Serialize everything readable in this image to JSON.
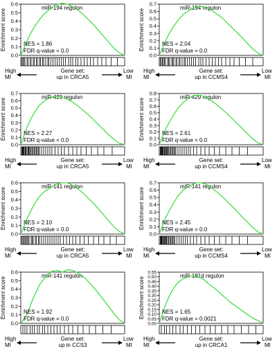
{
  "chart_data": [
    {
      "type": "line",
      "title": "miR-194 regulon",
      "ylabel": "Enrichment score",
      "ylim": [
        0,
        0.6
      ],
      "yticks": [
        "0.0",
        "0.1",
        "0.2",
        "0.3",
        "0.4",
        "0.5",
        "0.6"
      ],
      "nes": "NES = 1.86",
      "fdr": "FDR q-value = 0.0",
      "gene_set": [
        "Gene set:",
        "up in CRCA5"
      ],
      "left_label": [
        "High",
        "MI"
      ],
      "right_label": [
        "Low",
        "MI"
      ],
      "line_color": "#44dd44",
      "grid": false,
      "series": [
        {
          "x": [
            0,
            0.03,
            0.06,
            0.1,
            0.14,
            0.18,
            0.23,
            0.28,
            0.32,
            0.36,
            0.4,
            0.45,
            0.5,
            0.55,
            0.6,
            0.65,
            0.7,
            0.75,
            0.8,
            0.85,
            0.9,
            0.95,
            1.0
          ],
          "y": [
            0.0,
            0.08,
            0.17,
            0.27,
            0.35,
            0.42,
            0.49,
            0.54,
            0.58,
            0.6,
            0.61,
            0.6,
            0.57,
            0.53,
            0.48,
            0.42,
            0.36,
            0.29,
            0.22,
            0.15,
            0.08,
            0.03,
            0.0
          ]
        }
      ],
      "hits": [
        0.01,
        0.02,
        0.03,
        0.04,
        0.06,
        0.07,
        0.09,
        0.1,
        0.12,
        0.13,
        0.15,
        0.16,
        0.18,
        0.19,
        0.21,
        0.22,
        0.24,
        0.26,
        0.27,
        0.29,
        0.31,
        0.33,
        0.35,
        0.37,
        0.39,
        0.41,
        0.43,
        0.46,
        0.48,
        0.5,
        0.53,
        0.55,
        0.58,
        0.61,
        0.64,
        0.67,
        0.7,
        0.74,
        0.78,
        0.82,
        0.87,
        0.93
      ]
    },
    {
      "type": "line",
      "title": "miR-194 regulon",
      "ylabel": "Enrichment score",
      "ylim": [
        0,
        0.7
      ],
      "yticks": [
        "0.0",
        "0.1",
        "0.2",
        "0.3",
        "0.4",
        "0.5",
        "0.6",
        "0.7"
      ],
      "nes": "NES = 2.04",
      "fdr": "FDR q-value = 0.0",
      "gene_set": [
        "Gene set:",
        "up in CCMS4"
      ],
      "left_label": [
        "High",
        "MI"
      ],
      "right_label": [
        "Low",
        "MI"
      ],
      "line_color": "#44dd44",
      "grid": false,
      "series": [
        {
          "x": [
            0,
            0.03,
            0.06,
            0.1,
            0.14,
            0.18,
            0.23,
            0.28,
            0.32,
            0.36,
            0.4,
            0.45,
            0.5,
            0.55,
            0.6,
            0.65,
            0.7,
            0.75,
            0.8,
            0.85,
            0.9,
            0.95,
            1.0
          ],
          "y": [
            0.0,
            0.1,
            0.2,
            0.31,
            0.4,
            0.48,
            0.56,
            0.61,
            0.64,
            0.66,
            0.67,
            0.66,
            0.62,
            0.57,
            0.52,
            0.45,
            0.38,
            0.31,
            0.24,
            0.16,
            0.09,
            0.03,
            0.0
          ]
        }
      ],
      "hits": [
        0.01,
        0.02,
        0.03,
        0.04,
        0.05,
        0.06,
        0.08,
        0.09,
        0.1,
        0.12,
        0.13,
        0.14,
        0.16,
        0.17,
        0.19,
        0.2,
        0.22,
        0.24,
        0.25,
        0.27,
        0.29,
        0.31,
        0.33,
        0.35,
        0.38,
        0.4,
        0.42,
        0.45,
        0.48,
        0.51,
        0.54,
        0.57,
        0.6,
        0.64,
        0.68,
        0.72,
        0.77,
        0.83,
        0.9
      ]
    },
    {
      "type": "line",
      "title": "miR-429 regulon",
      "ylabel": "Enrichment score",
      "ylim": [
        0,
        0.7
      ],
      "yticks": [
        "0.0",
        "0.1",
        "0.2",
        "0.3",
        "0.4",
        "0.5",
        "0.6",
        "0.7"
      ],
      "nes": "NES = 2.27",
      "fdr": "FDR q-value = 0.0",
      "gene_set": [
        "Gene set:",
        "up in CRCA5"
      ],
      "left_label": [
        "High",
        "MI"
      ],
      "right_label": [
        "Low",
        "MI"
      ],
      "line_color": "#44dd44",
      "grid": false,
      "series": [
        {
          "x": [
            0,
            0.03,
            0.06,
            0.1,
            0.14,
            0.18,
            0.23,
            0.28,
            0.32,
            0.36,
            0.4,
            0.45,
            0.5,
            0.55,
            0.6,
            0.65,
            0.7,
            0.75,
            0.8,
            0.85,
            0.9,
            0.95,
            1.0
          ],
          "y": [
            0.0,
            0.12,
            0.24,
            0.36,
            0.46,
            0.54,
            0.6,
            0.64,
            0.66,
            0.66,
            0.65,
            0.62,
            0.58,
            0.53,
            0.47,
            0.41,
            0.34,
            0.27,
            0.2,
            0.13,
            0.07,
            0.02,
            0.0
          ]
        }
      ],
      "hits": [
        0.01,
        0.015,
        0.02,
        0.025,
        0.03,
        0.04,
        0.045,
        0.05,
        0.06,
        0.07,
        0.075,
        0.08,
        0.09,
        0.1,
        0.11,
        0.12,
        0.13,
        0.14,
        0.15,
        0.16,
        0.17,
        0.18,
        0.2,
        0.22,
        0.24,
        0.26,
        0.28,
        0.3,
        0.33,
        0.36,
        0.39,
        0.42,
        0.46,
        0.5,
        0.54,
        0.58,
        0.63,
        0.68,
        0.74,
        0.8,
        0.88
      ]
    },
    {
      "type": "line",
      "title": "miR-429 regulon",
      "ylabel": "Enrichment score",
      "ylim": [
        0,
        0.8
      ],
      "yticks": [
        "0.0",
        "0.1",
        "0.2",
        "0.3",
        "0.4",
        "0.5",
        "0.6",
        "0.7",
        "0.8"
      ],
      "nes": "NES = 2.61",
      "fdr": "FDR q-value = 0.0",
      "gene_set": [
        "Gene set:",
        "up in CCMS4"
      ],
      "left_label": [
        "High",
        "MI"
      ],
      "right_label": [
        "Low",
        "MI"
      ],
      "line_color": "#44dd44",
      "grid": false,
      "series": [
        {
          "x": [
            0,
            0.03,
            0.06,
            0.1,
            0.14,
            0.18,
            0.23,
            0.28,
            0.32,
            0.36,
            0.4,
            0.45,
            0.5,
            0.55,
            0.6,
            0.65,
            0.7,
            0.75,
            0.8,
            0.85,
            0.9,
            0.95,
            1.0
          ],
          "y": [
            0.0,
            0.12,
            0.24,
            0.36,
            0.47,
            0.57,
            0.66,
            0.72,
            0.76,
            0.77,
            0.77,
            0.74,
            0.69,
            0.63,
            0.56,
            0.49,
            0.41,
            0.33,
            0.25,
            0.17,
            0.09,
            0.03,
            0.0
          ]
        }
      ],
      "hits": [
        0.01,
        0.015,
        0.02,
        0.025,
        0.03,
        0.035,
        0.04,
        0.05,
        0.055,
        0.06,
        0.07,
        0.075,
        0.08,
        0.09,
        0.1,
        0.11,
        0.12,
        0.13,
        0.14,
        0.15,
        0.16,
        0.18,
        0.2,
        0.22,
        0.24,
        0.26,
        0.28,
        0.3,
        0.33,
        0.36,
        0.4,
        0.44,
        0.48,
        0.53,
        0.58,
        0.64,
        0.7,
        0.77,
        0.85
      ]
    },
    {
      "type": "line",
      "title": "miR-141 regulon",
      "ylabel": "Enrichment score",
      "ylim": [
        0,
        0.6
      ],
      "yticks": [
        "0.0",
        "0.1",
        "0.2",
        "0.3",
        "0.4",
        "0.5",
        "0.6"
      ],
      "nes": "NES = 2.10",
      "fdr": "FDR q-value = 0.0",
      "gene_set": [
        "Gene set:",
        "up in CRCA5"
      ],
      "left_label": [
        "High",
        "MI"
      ],
      "right_label": [
        "Low",
        "MI"
      ],
      "line_color": "#44dd44",
      "grid": false,
      "series": [
        {
          "x": [
            0,
            0.03,
            0.06,
            0.1,
            0.14,
            0.18,
            0.23,
            0.28,
            0.32,
            0.36,
            0.4,
            0.45,
            0.5,
            0.55,
            0.6,
            0.65,
            0.7,
            0.75,
            0.8,
            0.85,
            0.9,
            0.95,
            1.0
          ],
          "y": [
            0.0,
            0.09,
            0.18,
            0.28,
            0.37,
            0.44,
            0.5,
            0.54,
            0.57,
            0.59,
            0.6,
            0.6,
            0.57,
            0.53,
            0.48,
            0.42,
            0.36,
            0.29,
            0.22,
            0.15,
            0.08,
            0.03,
            0.0
          ]
        }
      ],
      "hits": [
        0.01,
        0.02,
        0.03,
        0.04,
        0.05,
        0.06,
        0.07,
        0.08,
        0.1,
        0.11,
        0.12,
        0.14,
        0.15,
        0.17,
        0.18,
        0.2,
        0.22,
        0.24,
        0.26,
        0.28,
        0.3,
        0.32,
        0.34,
        0.36,
        0.38,
        0.41,
        0.44,
        0.47,
        0.5,
        0.53,
        0.57,
        0.61,
        0.65,
        0.7,
        0.75,
        0.8,
        0.86,
        0.92
      ]
    },
    {
      "type": "line",
      "title": "miR-141 regulon",
      "ylabel": "Enrichment score",
      "ylim": [
        0,
        0.7
      ],
      "yticks": [
        "0.0",
        "0.1",
        "0.2",
        "0.3",
        "0.4",
        "0.5",
        "0.6",
        "0.7"
      ],
      "nes": "NES = 2.45",
      "fdr": "FDR q-value = 0.0",
      "gene_set": [
        "Gene set:",
        "up in CCMS4"
      ],
      "left_label": [
        "High",
        "MI"
      ],
      "right_label": [
        "Low",
        "MI"
      ],
      "line_color": "#44dd44",
      "grid": false,
      "series": [
        {
          "x": [
            0,
            0.03,
            0.06,
            0.1,
            0.14,
            0.18,
            0.23,
            0.28,
            0.32,
            0.36,
            0.4,
            0.45,
            0.5,
            0.55,
            0.6,
            0.65,
            0.7,
            0.75,
            0.8,
            0.85,
            0.9,
            0.95,
            1.0
          ],
          "y": [
            0.0,
            0.11,
            0.22,
            0.33,
            0.43,
            0.52,
            0.6,
            0.65,
            0.68,
            0.7,
            0.7,
            0.68,
            0.64,
            0.58,
            0.52,
            0.45,
            0.38,
            0.31,
            0.23,
            0.16,
            0.09,
            0.03,
            0.0
          ]
        }
      ],
      "hits": [
        0.01,
        0.015,
        0.02,
        0.025,
        0.03,
        0.04,
        0.045,
        0.05,
        0.06,
        0.065,
        0.07,
        0.08,
        0.09,
        0.1,
        0.11,
        0.12,
        0.13,
        0.14,
        0.15,
        0.17,
        0.19,
        0.21,
        0.23,
        0.25,
        0.27,
        0.3,
        0.33,
        0.36,
        0.4,
        0.44,
        0.48,
        0.53,
        0.58,
        0.64,
        0.7,
        0.77,
        0.85
      ]
    },
    {
      "type": "line",
      "title": "miR-141 regulon",
      "ylabel": "Enrichment score",
      "ylim": [
        0,
        0.6
      ],
      "yticks": [
        "0.0",
        "0.1",
        "0.2",
        "0.3",
        "0.4",
        "0.5",
        "0.6"
      ],
      "nes": "NES = 1.92",
      "fdr": "FDR q-value = 0.0",
      "gene_set": [
        "Gene set:",
        "up in CCS3"
      ],
      "left_label": [
        "High",
        "MI"
      ],
      "right_label": [
        "Low",
        "MI"
      ],
      "line_color": "#44dd44",
      "grid": false,
      "series": [
        {
          "x": [
            0,
            0.03,
            0.06,
            0.09,
            0.12,
            0.15,
            0.18,
            0.21,
            0.25,
            0.3,
            0.35,
            0.4,
            0.45,
            0.5,
            0.55,
            0.6,
            0.65,
            0.7,
            0.75,
            0.8,
            0.85,
            0.9,
            0.95,
            1.0
          ],
          "y": [
            0.0,
            0.05,
            0.1,
            0.2,
            0.3,
            0.37,
            0.45,
            0.5,
            0.56,
            0.61,
            0.62,
            0.6,
            0.63,
            0.62,
            0.59,
            0.55,
            0.49,
            0.42,
            0.35,
            0.27,
            0.19,
            0.11,
            0.04,
            0.0
          ]
        }
      ],
      "hits": [
        0.02,
        0.04,
        0.06,
        0.09,
        0.11,
        0.13,
        0.16,
        0.18,
        0.21,
        0.23,
        0.26,
        0.29,
        0.32,
        0.35,
        0.38,
        0.42,
        0.46,
        0.5,
        0.55,
        0.6,
        0.66,
        0.72,
        0.79,
        0.87
      ]
    },
    {
      "type": "line",
      "title": "miR-181d regulon",
      "ylabel": "Enrichment score",
      "ylim": [
        0,
        0.55
      ],
      "yticks": [
        "0.00",
        "0.05",
        "0.10",
        "0.15",
        "0.20",
        "0.25",
        "0.30",
        "0.35",
        "0.40",
        "0.45",
        "0.50",
        "0.55"
      ],
      "nes": "NES = 1.65",
      "fdr": "FDR q-value = 0.0021",
      "gene_set": [
        "Gene set:",
        "up in CRCA1"
      ],
      "left_label": [
        "High",
        "MI"
      ],
      "right_label": [
        "Low",
        "MI"
      ],
      "line_color": "#44dd44",
      "grid": false,
      "series": [
        {
          "x": [
            0,
            0.03,
            0.06,
            0.1,
            0.14,
            0.18,
            0.23,
            0.28,
            0.33,
            0.38,
            0.43,
            0.48,
            0.53,
            0.58,
            0.63,
            0.68,
            0.73,
            0.78,
            0.83,
            0.88,
            0.93,
            0.97,
            1.0
          ],
          "y": [
            0.0,
            0.1,
            0.2,
            0.3,
            0.38,
            0.44,
            0.48,
            0.5,
            0.51,
            0.5,
            0.47,
            0.42,
            0.38,
            0.33,
            0.28,
            0.23,
            0.19,
            0.15,
            0.11,
            0.07,
            0.04,
            0.02,
            0.0
          ]
        }
      ],
      "hits": [
        0.02,
        0.05,
        0.07,
        0.1,
        0.13,
        0.16,
        0.2,
        0.23,
        0.27,
        0.31,
        0.35,
        0.39,
        0.44,
        0.49,
        0.54,
        0.6,
        0.66,
        0.72,
        0.79,
        0.86,
        0.93
      ]
    }
  ]
}
